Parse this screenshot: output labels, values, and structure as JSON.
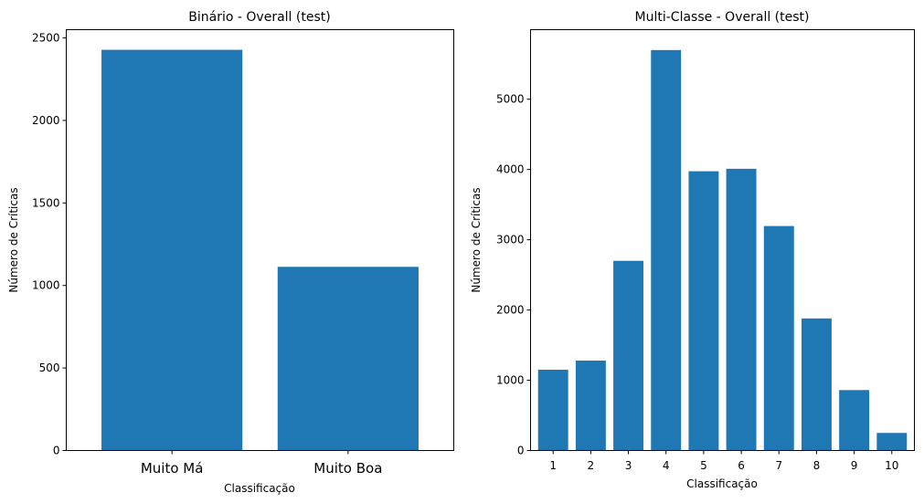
{
  "chart_data": [
    {
      "type": "bar",
      "title": "Binário - Overall (test)",
      "xlabel": "Classificação",
      "ylabel": "Número de Críticas",
      "categories": [
        "Muito Má",
        "Muito Boa"
      ],
      "values": [
        2428,
        1113
      ],
      "ylim": [
        0,
        2550
      ],
      "yticks": [
        0,
        500,
        1000,
        1500,
        2000,
        2500
      ],
      "color": "#1f77b4",
      "grid": false
    },
    {
      "type": "bar",
      "title": "Multi-Classe - Overall (test)",
      "xlabel": "Classificação",
      "ylabel": "Número de Críticas",
      "categories": [
        "1",
        "2",
        "3",
        "4",
        "5",
        "6",
        "7",
        "8",
        "9",
        "10"
      ],
      "values": [
        1150,
        1280,
        2700,
        5700,
        3975,
        4010,
        3195,
        1880,
        860,
        250
      ],
      "ylim": [
        0,
        5990
      ],
      "yticks": [
        0,
        1000,
        2000,
        3000,
        4000,
        5000
      ],
      "color": "#1f77b4",
      "grid": false
    }
  ]
}
